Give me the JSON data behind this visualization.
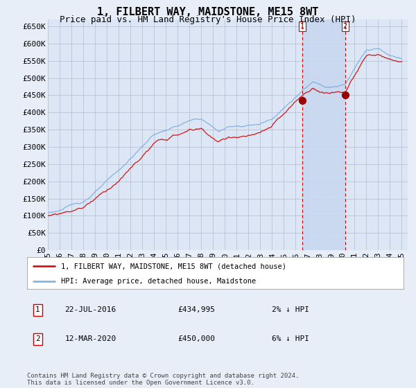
{
  "title": "1, FILBERT WAY, MAIDSTONE, ME15 8WT",
  "subtitle": "Price paid vs. HM Land Registry's House Price Index (HPI)",
  "ylabel_ticks": [
    "£0",
    "£50K",
    "£100K",
    "£150K",
    "£200K",
    "£250K",
    "£300K",
    "£350K",
    "£400K",
    "£450K",
    "£500K",
    "£550K",
    "£600K",
    "£650K"
  ],
  "ytick_values": [
    0,
    50000,
    100000,
    150000,
    200000,
    250000,
    300000,
    350000,
    400000,
    450000,
    500000,
    550000,
    600000,
    650000
  ],
  "ylim": [
    0,
    670000
  ],
  "background_color": "#e8eef8",
  "plot_background": "#dce6f5",
  "grid_color": "#b0bcd0",
  "hpi_color": "#7aade0",
  "price_color": "#cc0000",
  "transaction1_date": 2016.55,
  "transaction1_price": 434995,
  "transaction2_date": 2020.19,
  "transaction2_price": 450000,
  "vline_color": "#cc0000",
  "shade_color": "#c8d8f0",
  "legend_label1": "1, FILBERT WAY, MAIDSTONE, ME15 8WT (detached house)",
  "legend_label2": "HPI: Average price, detached house, Maidstone",
  "note1_num": "1",
  "note1_date": "22-JUL-2016",
  "note1_price": "£434,995",
  "note1_hpi": "2% ↓ HPI",
  "note2_num": "2",
  "note2_date": "12-MAR-2020",
  "note2_price": "£450,000",
  "note2_hpi": "6% ↓ HPI",
  "footer": "Contains HM Land Registry data © Crown copyright and database right 2024.\nThis data is licensed under the Open Government Licence v3.0.",
  "title_fontsize": 11,
  "subtitle_fontsize": 9,
  "tick_fontsize": 8,
  "xtick_labels": [
    "95",
    "96",
    "97",
    "98",
    "99",
    "00",
    "01",
    "02",
    "03",
    "04",
    "05",
    "06",
    "07",
    "08",
    "09",
    "10",
    "11",
    "12",
    "13",
    "14",
    "15",
    "16",
    "17",
    "18",
    "19",
    "20",
    "21",
    "22",
    "23",
    "24",
    "25"
  ]
}
